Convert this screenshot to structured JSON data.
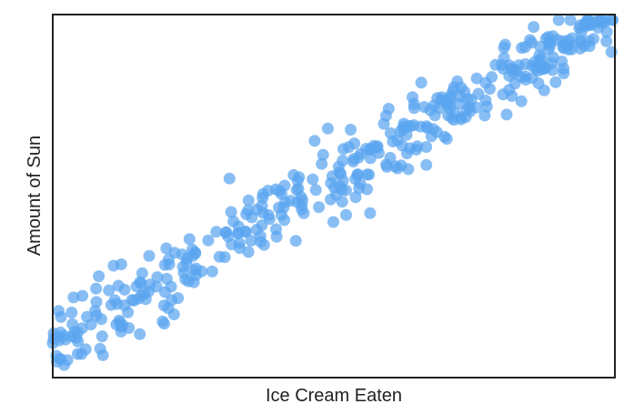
{
  "chart_data": {
    "type": "scatter",
    "title": "",
    "xlabel": "Ice Cream Eaten",
    "ylabel": "Amount of Sun",
    "xlim": [
      0,
      100
    ],
    "ylim": [
      0,
      100
    ],
    "grid": false,
    "show_ticks": false,
    "point_color": "#5aa5f0",
    "axes_color": "#222222",
    "n_points": 400,
    "trend": {
      "slope": 0.9,
      "intercept": 10,
      "noise": 5
    },
    "seed": 7
  }
}
